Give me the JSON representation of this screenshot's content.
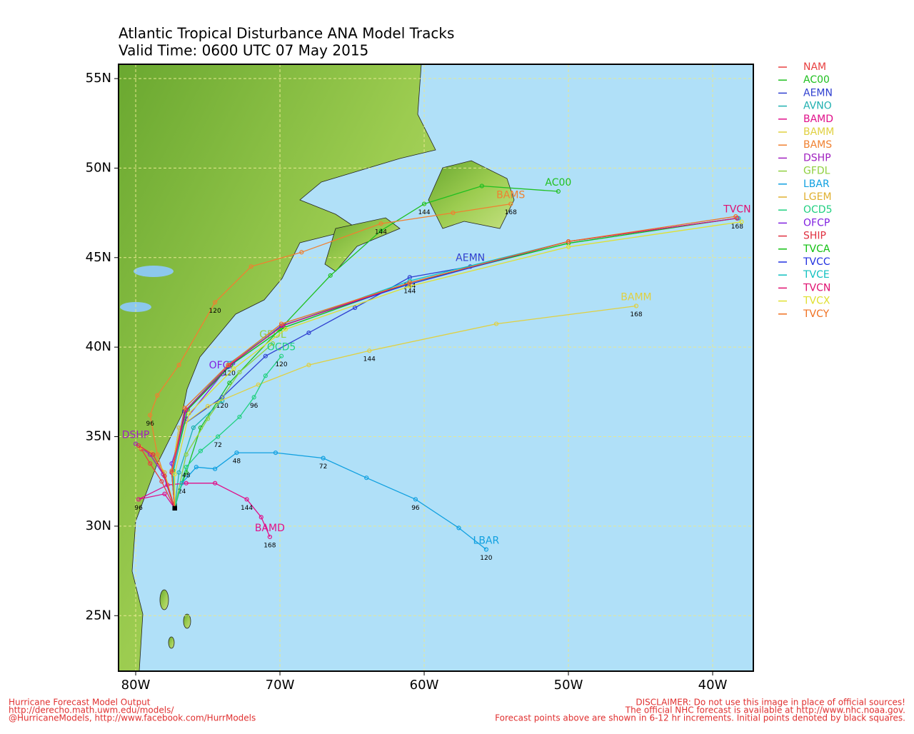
{
  "chart_data": {
    "type": "line",
    "title": "Atlantic Tropical Disturbance ANA Model Tracks",
    "subtitle": "Valid Time: 0600 UTC 07 May 2015",
    "xlim": [
      -81.19,
      -37.18
    ],
    "ylim": [
      21.9,
      55.8
    ],
    "grid": true,
    "legend": "right",
    "xticks": [
      {
        "value": -80,
        "label": "80W"
      },
      {
        "value": -70,
        "label": "70W"
      },
      {
        "value": -60,
        "label": "60W"
      },
      {
        "value": -50,
        "label": "50W"
      },
      {
        "value": -40,
        "label": "40W"
      }
    ],
    "yticks": [
      {
        "value": 25,
        "label": "25N"
      },
      {
        "value": 30,
        "label": "30N"
      },
      {
        "value": 35,
        "label": "35N"
      },
      {
        "value": 40,
        "label": "40N"
      },
      {
        "value": 45,
        "label": "45N"
      },
      {
        "value": 50,
        "label": "50N"
      },
      {
        "value": 55,
        "label": "55N"
      }
    ],
    "series": [
      {
        "name": "NAM",
        "color": "#e84040",
        "end_label": false,
        "x": [
          -77.3,
          -78.2,
          -79.0,
          -79.6
        ],
        "y": [
          31.0,
          32.5,
          33.5,
          34.3
        ]
      },
      {
        "name": "AC00",
        "color": "#20c020",
        "end_label": true,
        "x": [
          -77.3,
          -76.5,
          -75.5,
          -73.5,
          -70.0,
          -66.5,
          -63.0,
          -60.0,
          -56.0,
          -50.7
        ],
        "y": [
          31.2,
          33.0,
          35.5,
          38.0,
          41.0,
          44.0,
          46.5,
          48.0,
          49.0,
          48.7
        ],
        "point_labels": [
          null,
          null,
          null,
          null,
          null,
          null,
          null,
          "144",
          null,
          null
        ]
      },
      {
        "name": "AEMN",
        "color": "#3040d0",
        "end_label": true,
        "x": [
          -77.3,
          -77.5,
          -77.0,
          -74.0,
          -71.0,
          -68.0,
          -64.8,
          -61.0,
          -56.8
        ],
        "y": [
          31.0,
          33.0,
          35.5,
          37.2,
          39.5,
          40.8,
          42.2,
          43.9,
          44.5
        ],
        "point_labels": [
          null,
          null,
          null,
          "120",
          null,
          null,
          null,
          "144",
          null
        ]
      },
      {
        "name": "AVNO",
        "color": "#20b0b0",
        "end_label": false,
        "x": [
          -77.3,
          -77.0,
          -76.0,
          -74.0
        ],
        "y": [
          31.0,
          33.0,
          35.5,
          37.0
        ]
      },
      {
        "name": "BAMD",
        "color": "#e0108a",
        "end_label": true,
        "x": [
          -77.3,
          -78.0,
          -79.8,
          -77.8,
          -76.5,
          -74.5,
          -72.3,
          -71.3,
          -70.7
        ],
        "y": [
          31.0,
          31.8,
          31.5,
          32.3,
          32.4,
          32.4,
          31.5,
          30.5,
          29.4
        ],
        "point_labels": [
          null,
          null,
          "96",
          null,
          null,
          null,
          "144",
          null,
          "168"
        ]
      },
      {
        "name": "BAMM",
        "color": "#e0d040",
        "end_label": true,
        "x": [
          -77.3,
          -77.5,
          -77.0,
          -75.0,
          -71.5,
          -68.0,
          -63.8,
          -55.0,
          -45.3
        ],
        "y": [
          31.0,
          33.0,
          35.5,
          36.7,
          37.9,
          39.0,
          39.8,
          41.3,
          42.3
        ],
        "point_labels": [
          null,
          null,
          null,
          null,
          null,
          null,
          "144",
          null,
          "168"
        ]
      },
      {
        "name": "BAMS",
        "color": "#f08030",
        "end_label": true,
        "x": [
          -77.3,
          -78.5,
          -79.0,
          -78.5,
          -77.0,
          -74.5,
          -72.0,
          -68.5,
          -63.0,
          -58.0,
          -54.0
        ],
        "y": [
          31.0,
          34.0,
          36.2,
          37.3,
          39.0,
          42.5,
          44.5,
          45.3,
          46.9,
          47.5,
          48.0
        ],
        "point_labels": [
          null,
          null,
          "96",
          null,
          null,
          "120",
          null,
          null,
          "144",
          null,
          "168"
        ]
      },
      {
        "name": "DSHP",
        "color": "#a020c0",
        "end_label": true,
        "x": [
          -77.3,
          -78.1,
          -79.0,
          -80.0
        ],
        "y": [
          31.0,
          32.9,
          34.0,
          34.6
        ]
      },
      {
        "name": "GFDL",
        "color": "#90d040",
        "end_label": true,
        "x": [
          -77.3,
          -76.5,
          -75.0,
          -72.8,
          -70.5
        ],
        "y": [
          31.0,
          34.0,
          36.0,
          38.6,
          40.2
        ]
      },
      {
        "name": "LBAR",
        "color": "#10a0e0",
        "end_label": true,
        "x": [
          -77.3,
          -76.8,
          -75.8,
          -74.5,
          -73.0,
          -70.3,
          -67.0,
          -64.0,
          -60.6,
          -57.6,
          -55.7
        ],
        "y": [
          31.0,
          32.4,
          33.3,
          33.2,
          34.1,
          34.1,
          33.8,
          32.7,
          31.5,
          29.9,
          28.7
        ],
        "point_labels": [
          null,
          "24",
          null,
          null,
          "48",
          null,
          "72",
          null,
          "96",
          null,
          "120"
        ]
      },
      {
        "name": "LGEM",
        "color": "#e0b030",
        "end_label": false,
        "x": [
          -77.3,
          -78.0,
          -78.9,
          -79.7
        ],
        "y": [
          31.0,
          33.0,
          34.1,
          34.4
        ]
      },
      {
        "name": "OCD5",
        "color": "#20d080",
        "end_label": true,
        "x": [
          -77.3,
          -76.5,
          -75.5,
          -74.3,
          -72.8,
          -71.8,
          -71.0,
          -69.9
        ],
        "y": [
          31.0,
          33.3,
          34.2,
          35.0,
          36.1,
          37.2,
          38.4,
          39.5
        ],
        "point_labels": [
          null,
          "48",
          null,
          "72",
          null,
          "96",
          null,
          "120"
        ]
      },
      {
        "name": "OFCP",
        "color": "#8020e0",
        "end_label": true,
        "x": [
          -77.3,
          -77.5,
          -76.5,
          -74.0
        ],
        "y": [
          31.0,
          33.5,
          36.0,
          38.5
        ]
      },
      {
        "name": "SHIP",
        "color": "#e03040",
        "end_label": false,
        "x": [
          -77.3,
          -78.0,
          -78.8,
          -79.8
        ],
        "y": [
          31.0,
          32.8,
          34.0,
          34.5
        ]
      },
      {
        "name": "TVCA",
        "color": "#10c010",
        "end_label": false,
        "x": [
          -77.3,
          -77.4,
          -76.4,
          -73.4,
          -69.7,
          -61.0,
          -50.0,
          -38.3
        ],
        "y": [
          31.0,
          33.1,
          36.5,
          39.0,
          41.1,
          43.6,
          45.8,
          47.2
        ]
      },
      {
        "name": "TVCC",
        "color": "#2030e0",
        "end_label": false,
        "x": [
          -77.3,
          -77.5,
          -76.6,
          -73.6,
          -69.9,
          -61.1,
          -50.0,
          -38.3
        ],
        "y": [
          31.0,
          33.0,
          36.4,
          38.9,
          41.2,
          43.5,
          45.9,
          47.2
        ]
      },
      {
        "name": "TVCE",
        "color": "#10c0c0",
        "end_label": false,
        "x": [
          -77.3,
          -77.4,
          -76.5,
          -73.5,
          -69.8,
          -61.0,
          -50.0,
          -38.2
        ],
        "y": [
          31.0,
          33.0,
          36.5,
          39.1,
          41.2,
          43.7,
          45.9,
          47.2
        ]
      },
      {
        "name": "TVCN",
        "color": "#e01070",
        "end_label": true,
        "x": [
          -77.3,
          -77.5,
          -76.5,
          -73.5,
          -69.8,
          -61.0,
          -50.0,
          -38.3
        ],
        "y": [
          31.0,
          33.0,
          36.5,
          39.0,
          41.2,
          43.6,
          45.9,
          47.2
        ],
        "point_labels": [
          null,
          null,
          null,
          "120",
          null,
          "144",
          null,
          "168"
        ]
      },
      {
        "name": "TVCX",
        "color": "#e0e030",
        "end_label": false,
        "x": [
          -77.3,
          -77.3,
          -76.3,
          -73.2,
          -69.6,
          -61.0,
          -50.0,
          -38.0
        ],
        "y": [
          31.0,
          32.9,
          36.3,
          38.8,
          41.0,
          43.4,
          45.6,
          47.0
        ]
      },
      {
        "name": "TVCY",
        "color": "#f07020",
        "end_label": false,
        "x": [
          -77.3,
          -77.5,
          -76.6,
          -73.6,
          -69.9,
          -61.0,
          -50.0,
          -38.4
        ],
        "y": [
          31.0,
          33.1,
          36.6,
          39.0,
          41.3,
          43.6,
          45.9,
          47.3
        ]
      }
    ],
    "footer_left": [
      "Hurricane Forecast Model Output",
      "http://derecho.math.uwm.edu/models/",
      "@HurricaneModels, http://www.facebook.com/HurrModels"
    ],
    "footer_right": [
      "DISCLAIMER: Do not use this image in place of official sources!",
      "The official NHC forecast is available at http://www.nhc.noaa.gov.",
      "Forecast points above are shown in 6-12 hr increments. Initial points denoted by black squares."
    ]
  }
}
